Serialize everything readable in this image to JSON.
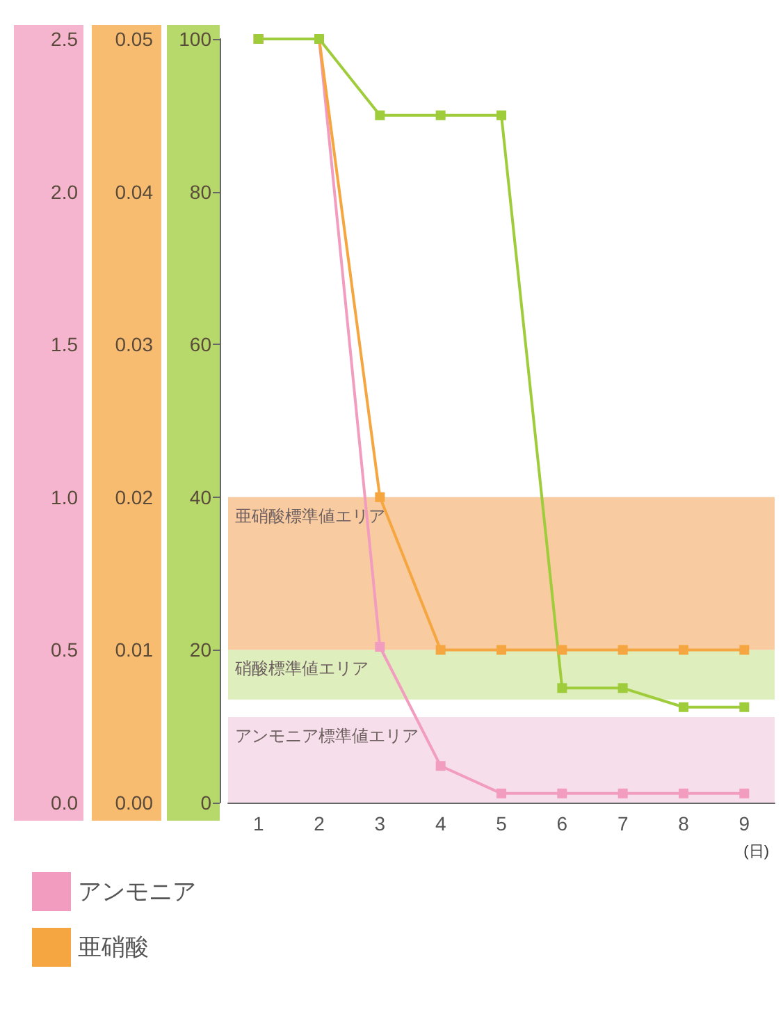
{
  "chart_data": {
    "type": "line",
    "xlabel": "(日)",
    "categories": [
      "1",
      "2",
      "3",
      "4",
      "5",
      "6",
      "7",
      "8",
      "9"
    ],
    "series": [
      {
        "name": "アンモニア",
        "color": "#f29cbf",
        "axis": "y3",
        "values": [
          2.5,
          2.5,
          0.51,
          0.12,
          0.03,
          0.03,
          0.03,
          0.03,
          0.03
        ]
      },
      {
        "name": "亜硝酸",
        "color": "#f5a640",
        "axis": "y2",
        "values": [
          0.05,
          0.05,
          0.02,
          0.01,
          0.01,
          0.01,
          0.01,
          0.01,
          0.01
        ]
      },
      {
        "color": "#9fcc3b",
        "values": [
          100,
          100,
          90,
          90,
          90,
          15,
          15,
          12.5,
          12.5
        ]
      }
    ],
    "ylim": [
      0,
      100
    ],
    "yticks": [
      0,
      20,
      40,
      60,
      80,
      100
    ],
    "y2lim": [
      0,
      0.05
    ],
    "y2ticks": [
      {
        "value": 0,
        "label": "0.00"
      },
      0.01,
      0.02,
      0.03,
      0.04,
      0.05
    ],
    "y3lim": [
      0,
      2.5
    ],
    "y3ticks": [
      {
        "value": 0,
        "label": "0.0"
      },
      0.5,
      {
        "value": 1,
        "label": "1.0"
      },
      1.5,
      {
        "value": 2,
        "label": "2.0"
      },
      2.5
    ],
    "bands": [
      {
        "axis": "y2",
        "from": 0.01,
        "to": 0.02,
        "label": "亜硝酸標準値エリア",
        "color": "#f5b980"
      },
      {
        "axis": "y",
        "from": 13.5,
        "to": 20,
        "label": "硝酸標準値エリア",
        "color": "#d3e8a6"
      },
      {
        "axis": "y3",
        "from": 0,
        "to": 0.28,
        "label": "アンモニア標準値エリア",
        "color": "#f3d3e3"
      }
    ],
    "marker": "square",
    "grid": false,
    "legend": "bottom"
  }
}
